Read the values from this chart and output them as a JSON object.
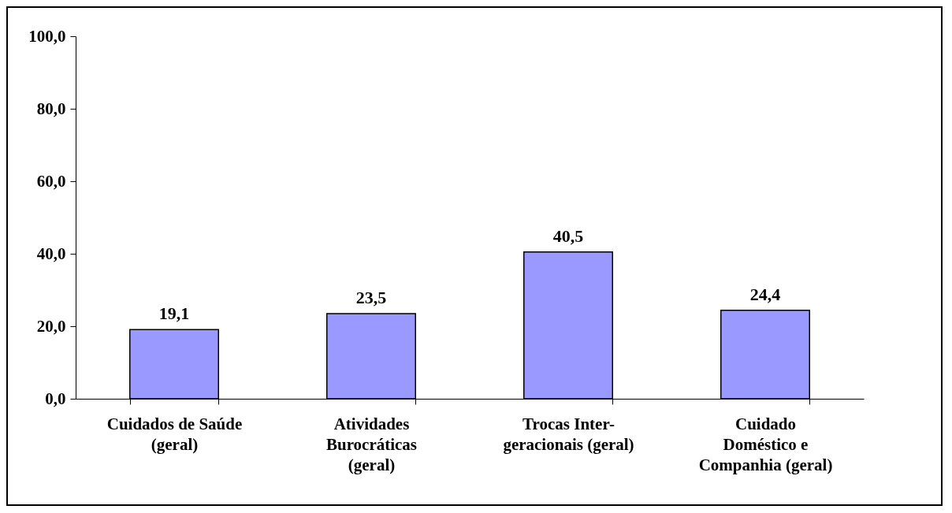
{
  "chart_data": {
    "type": "bar",
    "categories": [
      "Cuidados de Saúde (geral)",
      "Atividades Burocráticas (geral)",
      "Trocas Inter-geracionais (geral)",
      "Cuidado Doméstico e Companhia (geral)"
    ],
    "values": [
      19.1,
      23.5,
      40.5,
      24.4
    ],
    "color": "#9999ff",
    "ylim": [
      0,
      100
    ],
    "yticks": [
      {
        "value": 0,
        "label": "0,0"
      },
      {
        "value": 20,
        "label": "20,0"
      },
      {
        "value": 40,
        "label": "40,0"
      },
      {
        "value": 60,
        "label": "60,0"
      },
      {
        "value": 80,
        "label": "80,0"
      },
      {
        "value": 100,
        "label": "100,0"
      }
    ],
    "value_labels": [
      "19,1",
      "23,5",
      "40,5",
      "24,4"
    ],
    "grid": false
  }
}
